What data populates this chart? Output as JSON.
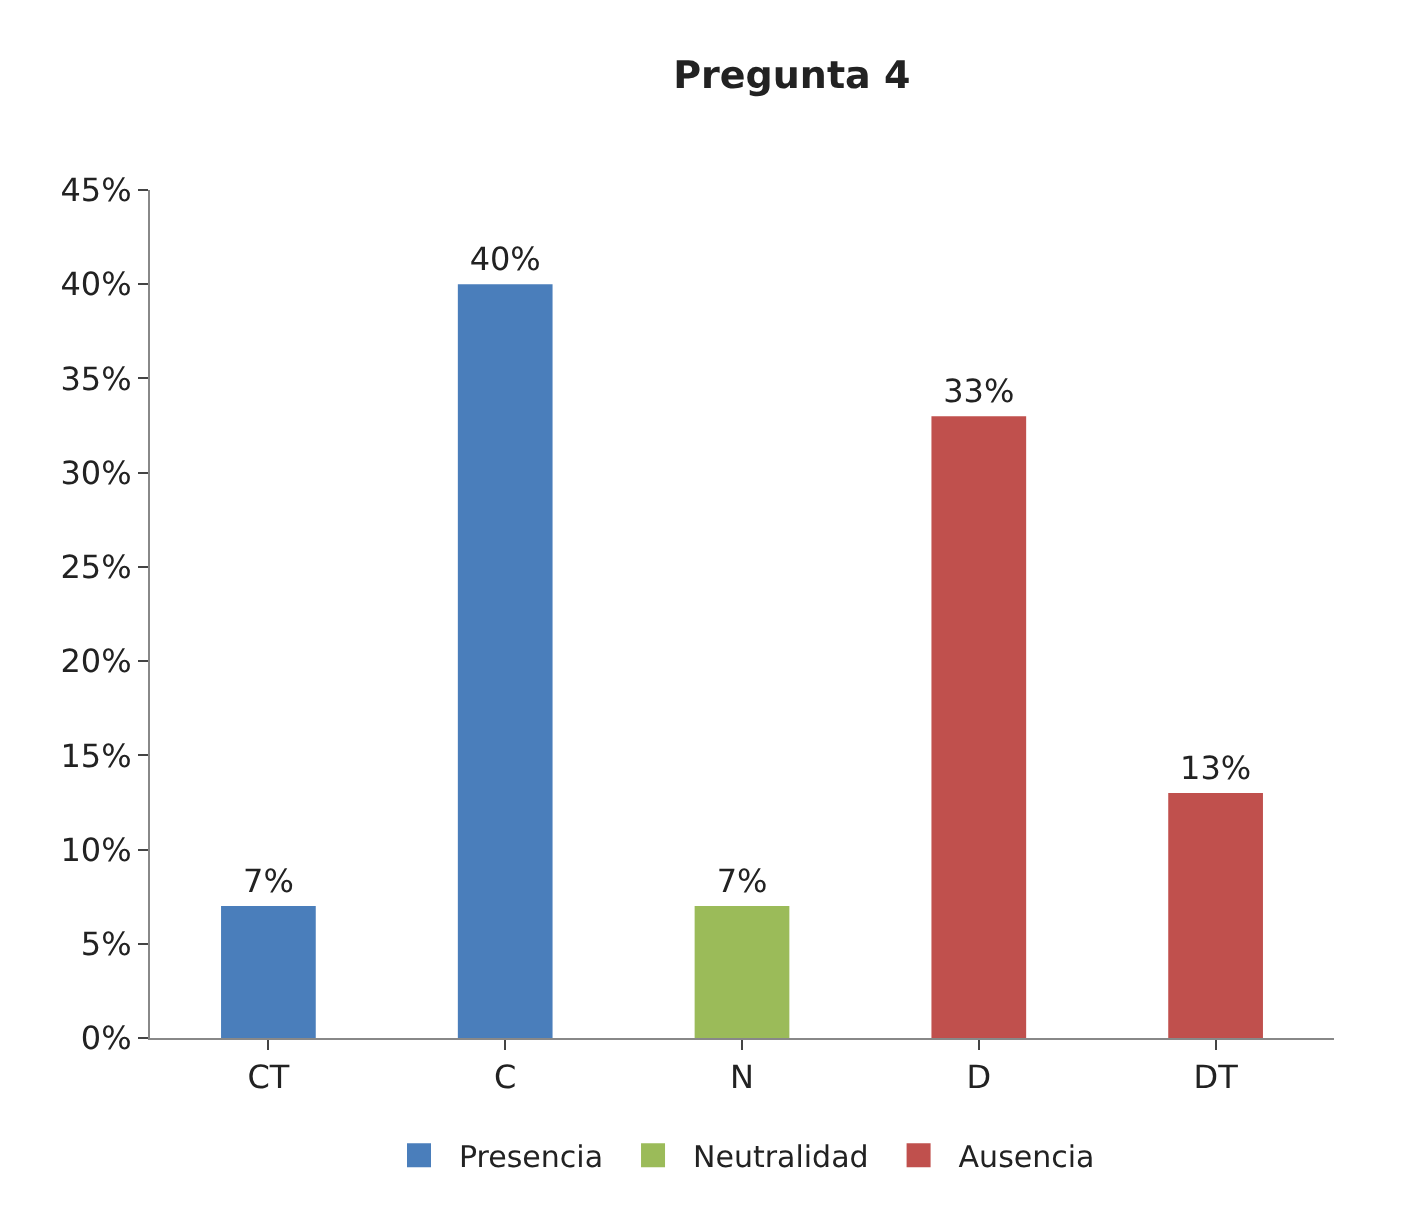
{
  "chart_data": {
    "type": "bar",
    "title": "Pregunta 4",
    "categories": [
      "CT",
      "C",
      "N",
      "D",
      "DT"
    ],
    "series": [
      {
        "name": "Presencia",
        "color": "#4a7ebb",
        "values": [
          7,
          40,
          null,
          null,
          null
        ],
        "value_labels": [
          "7%",
          "40%",
          null,
          null,
          null
        ]
      },
      {
        "name": "Neutralidad",
        "color": "#9bbb59",
        "values": [
          null,
          null,
          7,
          null,
          null
        ],
        "value_labels": [
          null,
          null,
          "7%",
          null,
          null
        ]
      },
      {
        "name": "Ausencia",
        "color": "#c0504d",
        "values": [
          null,
          null,
          null,
          33,
          13
        ],
        "value_labels": [
          null,
          null,
          null,
          "33%",
          "13%"
        ]
      }
    ],
    "ylim": [
      0,
      45
    ],
    "yticks": [
      {
        "value": 0,
        "label": "0%"
      },
      {
        "value": 5,
        "label": "5%"
      },
      {
        "value": 10,
        "label": "10%"
      },
      {
        "value": 15,
        "label": "15%"
      },
      {
        "value": 20,
        "label": "20%"
      },
      {
        "value": 25,
        "label": "25%"
      },
      {
        "value": 30,
        "label": "30%"
      },
      {
        "value": 35,
        "label": "35%"
      },
      {
        "value": 40,
        "label": "40%"
      },
      {
        "value": 45,
        "label": "45%"
      }
    ],
    "legend": "bottom"
  }
}
